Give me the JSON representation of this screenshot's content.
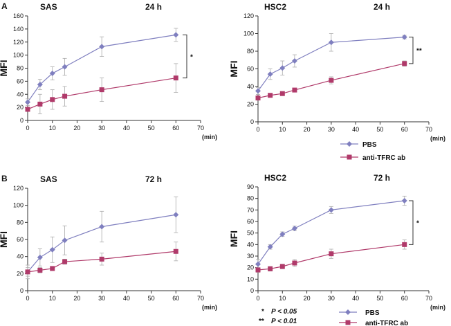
{
  "legend": {
    "series": [
      {
        "name": "PBS",
        "color": "#7f7fbf",
        "marker": "diamond"
      },
      {
        "name": "anti-TFRC ab",
        "color": "#b03a6a",
        "marker": "square"
      }
    ]
  },
  "significance_legend": [
    {
      "stars": "*",
      "label": "P < 0.05"
    },
    {
      "stars": "**",
      "label": "P < 0.01"
    }
  ],
  "chart_data": [
    {
      "type": "line",
      "panel": "A",
      "title": "SAS",
      "time": "24 h",
      "xlabel": "(min)",
      "ylabel": "MFI",
      "x": [
        0,
        5,
        10,
        15,
        30,
        60
      ],
      "xlim": [
        0,
        70
      ],
      "xticks": [
        0,
        10,
        20,
        30,
        40,
        50,
        60,
        70
      ],
      "ylim": [
        0,
        160
      ],
      "yticks": [
        0,
        20,
        40,
        60,
        80,
        100,
        120,
        140,
        160
      ],
      "series": [
        {
          "name": "PBS",
          "values": [
            28,
            55,
            72,
            82,
            113,
            131
          ],
          "errors": [
            5,
            8,
            10,
            13,
            15,
            10
          ]
        },
        {
          "name": "anti-TFRC ab",
          "values": [
            17,
            25,
            32,
            37,
            47,
            65
          ],
          "errors": [
            3,
            15,
            15,
            15,
            18,
            22
          ]
        }
      ],
      "significance": "*"
    },
    {
      "type": "line",
      "panel": "",
      "title": "HSC2",
      "time": "24 h",
      "xlabel": "(min)",
      "ylabel": "MFI",
      "x": [
        0,
        5,
        10,
        15,
        30,
        60
      ],
      "xlim": [
        0,
        70
      ],
      "xticks": [
        0,
        10,
        20,
        30,
        40,
        50,
        60,
        70
      ],
      "ylim": [
        0,
        120
      ],
      "yticks": [
        0,
        20,
        40,
        60,
        80,
        100,
        120
      ],
      "series": [
        {
          "name": "PBS",
          "values": [
            35,
            54,
            61,
            69,
            90,
            96
          ],
          "errors": [
            4,
            6,
            8,
            7,
            10,
            2
          ]
        },
        {
          "name": "anti-TFRC ab",
          "values": [
            27,
            30,
            32,
            36,
            47,
            66
          ],
          "errors": [
            2,
            2,
            2,
            2,
            4,
            3
          ]
        }
      ],
      "significance": "**"
    },
    {
      "type": "line",
      "panel": "B",
      "title": "SAS",
      "time": "72 h",
      "xlabel": "(min)",
      "ylabel": "MFI",
      "x": [
        0,
        5,
        10,
        15,
        30,
        60
      ],
      "xlim": [
        0,
        70
      ],
      "xticks": [
        0,
        10,
        20,
        30,
        40,
        50,
        60,
        70
      ],
      "ylim": [
        0,
        120
      ],
      "yticks": [
        0,
        20,
        40,
        60,
        80,
        100,
        120
      ],
      "series": [
        {
          "name": "PBS",
          "values": [
            22,
            39,
            48,
            59,
            75,
            89
          ],
          "errors": [
            8,
            10,
            15,
            17,
            18,
            21
          ]
        },
        {
          "name": "anti-TFRC ab",
          "values": [
            22,
            24,
            26,
            34,
            37,
            46
          ],
          "errors": [
            5,
            3,
            2,
            3,
            7,
            11
          ]
        }
      ],
      "significance": ""
    },
    {
      "type": "line",
      "panel": "",
      "title": "HSC2",
      "time": "72 h",
      "xlabel": "(min)",
      "ylabel": "MFI",
      "x": [
        0,
        5,
        10,
        15,
        30,
        60
      ],
      "xlim": [
        0,
        70
      ],
      "xticks": [
        0,
        10,
        20,
        30,
        40,
        50,
        60,
        70
      ],
      "ylim": [
        0,
        90
      ],
      "yticks": [
        0,
        10,
        20,
        30,
        40,
        50,
        60,
        70,
        80,
        90
      ],
      "series": [
        {
          "name": "PBS",
          "values": [
            23,
            38,
            49,
            54,
            70,
            78
          ],
          "errors": [
            4,
            2,
            2,
            2,
            3,
            4
          ]
        },
        {
          "name": "anti-TFRC ab",
          "values": [
            18,
            19,
            21,
            24,
            32,
            40
          ],
          "errors": [
            2,
            2,
            2,
            3,
            4,
            4
          ]
        }
      ],
      "significance": "*"
    }
  ]
}
